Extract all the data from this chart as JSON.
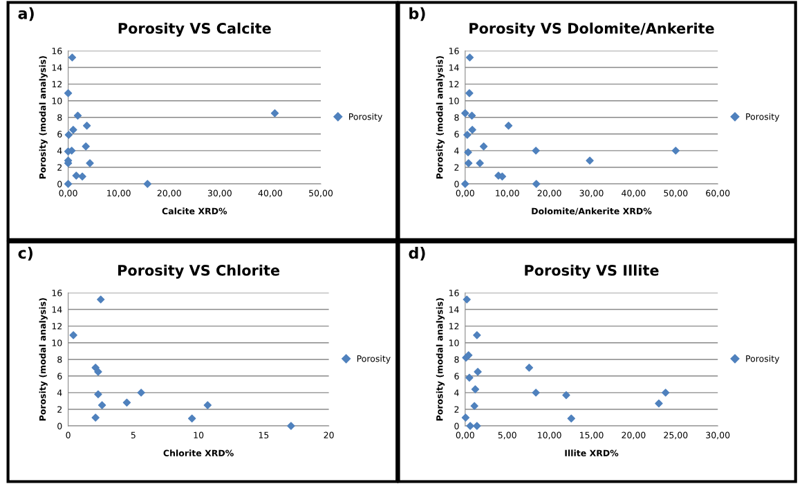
{
  "chart_data": [
    {
      "type": "scatter",
      "title": "Porosity VS Calcite",
      "xlabel": "Calcite XRD%",
      "ylabel": "Porosity (modal analysis)",
      "annotations": [
        "a)"
      ],
      "marker": "diamond",
      "legend": "right",
      "grid": "y",
      "xlim": [
        0,
        50
      ],
      "xticks": [
        {
          "value": 0,
          "label": "0,00"
        },
        {
          "value": 10,
          "label": "10,00"
        },
        {
          "value": 20,
          "label": "20,00"
        },
        {
          "value": 30,
          "label": "30,00"
        },
        {
          "value": 40,
          "label": "40,00"
        },
        {
          "value": 50,
          "label": "50,00"
        }
      ],
      "ylim": [
        0,
        16
      ],
      "yticks": [
        0,
        2,
        4,
        6,
        8,
        10,
        12,
        14,
        16
      ],
      "series": [
        {
          "name": "Porosity",
          "color": "#4f81bd",
          "x": [
            0.8,
            0,
            40.9,
            1.9,
            3.7,
            1.0,
            0.1,
            0.7,
            0,
            3.5,
            0,
            0,
            4.3,
            1.6,
            2.8,
            0,
            15.7
          ],
          "values": [
            15.2,
            10.9,
            8.5,
            8.2,
            7.0,
            6.5,
            5.9,
            4.0,
            3.9,
            4.5,
            2.8,
            2.5,
            2.5,
            1.0,
            0.9,
            0,
            0
          ]
        }
      ]
    },
    {
      "type": "scatter",
      "title": "Porosity VS Dolomite/Ankerite",
      "xlabel": "Dolomite/Ankerite XRD%",
      "ylabel": "Porosity (modal analysis)",
      "annotations": [
        "b)"
      ],
      "marker": "diamond",
      "legend": "right",
      "grid": "y",
      "xlim": [
        0,
        60
      ],
      "xticks": [
        {
          "value": 0,
          "label": "0,00"
        },
        {
          "value": 10,
          "label": "10,00"
        },
        {
          "value": 20,
          "label": "20,00"
        },
        {
          "value": 30,
          "label": "30,00"
        },
        {
          "value": 40,
          "label": "40,00"
        },
        {
          "value": 50,
          "label": "50,00"
        },
        {
          "value": 60,
          "label": "60,00"
        }
      ],
      "ylim": [
        0,
        16
      ],
      "yticks": [
        0,
        2,
        4,
        6,
        8,
        10,
        12,
        14,
        16
      ],
      "series": [
        {
          "name": "Porosity",
          "color": "#4f81bd",
          "x": [
            1.1,
            1.0,
            0,
            1.6,
            10.3,
            1.7,
            0.5,
            4.4,
            16.8,
            50.0,
            0.7,
            0.8,
            3.5,
            29.6,
            7.9,
            8.8,
            0,
            16.9
          ],
          "values": [
            15.2,
            10.9,
            8.5,
            8.2,
            7.0,
            6.5,
            5.9,
            4.5,
            4.0,
            4.0,
            3.8,
            2.5,
            2.5,
            2.8,
            1.0,
            0.9,
            0,
            0
          ]
        }
      ]
    },
    {
      "type": "scatter",
      "title": "Porosity VS Chlorite",
      "xlabel": "Chlorite XRD%",
      "ylabel": "Porosity (modal analysis)",
      "annotations": [
        "c)"
      ],
      "marker": "diamond",
      "legend": "right",
      "grid": "y",
      "xlim": [
        0,
        20
      ],
      "xticks": [
        0,
        5,
        10,
        15,
        20
      ],
      "ylim": [
        0,
        16
      ],
      "yticks": [
        0,
        2,
        4,
        6,
        8,
        10,
        12,
        14,
        16
      ],
      "series": [
        {
          "name": "Porosity",
          "color": "#4f81bd",
          "x": [
            2.5,
            0.4,
            2.1,
            2.3,
            2.3,
            2.6,
            4.5,
            5.6,
            2.1,
            9.5,
            10.7,
            17.1
          ],
          "values": [
            15.2,
            10.9,
            7.0,
            6.5,
            3.8,
            2.5,
            2.8,
            4.0,
            1.0,
            0.9,
            2.5,
            0
          ]
        }
      ]
    },
    {
      "type": "scatter",
      "title": "Porosity VS Illite",
      "xlabel": "Illite XRD%",
      "ylabel": "Porosity (modal analysis)",
      "annotations": [
        "d)"
      ],
      "marker": "diamond",
      "legend": "right",
      "grid": "y",
      "xlim": [
        0,
        30
      ],
      "xticks": [
        {
          "value": 0,
          "label": "0,00"
        },
        {
          "value": 5,
          "label": "5,00"
        },
        {
          "value": 10,
          "label": "10,00"
        },
        {
          "value": 15,
          "label": "15,00"
        },
        {
          "value": 20,
          "label": "20,00"
        },
        {
          "value": 25,
          "label": "25,00"
        },
        {
          "value": 30,
          "label": "30,00"
        }
      ],
      "ylim": [
        0,
        16
      ],
      "yticks": [
        0,
        2,
        4,
        6,
        8,
        10,
        12,
        14,
        16
      ],
      "series": [
        {
          "name": "Porosity",
          "color": "#4f81bd",
          "x": [
            0.2,
            1.4,
            0.1,
            0.4,
            7.6,
            1.5,
            0.5,
            1.2,
            8.4,
            12.0,
            23.8,
            23.0,
            1.1,
            12.6,
            0.05,
            0.6,
            1.4
          ],
          "values": [
            15.2,
            10.9,
            8.2,
            8.5,
            7.0,
            6.5,
            5.8,
            4.4,
            4.0,
            3.7,
            4.0,
            2.7,
            2.4,
            0.9,
            1.0,
            0,
            0
          ]
        }
      ]
    }
  ]
}
